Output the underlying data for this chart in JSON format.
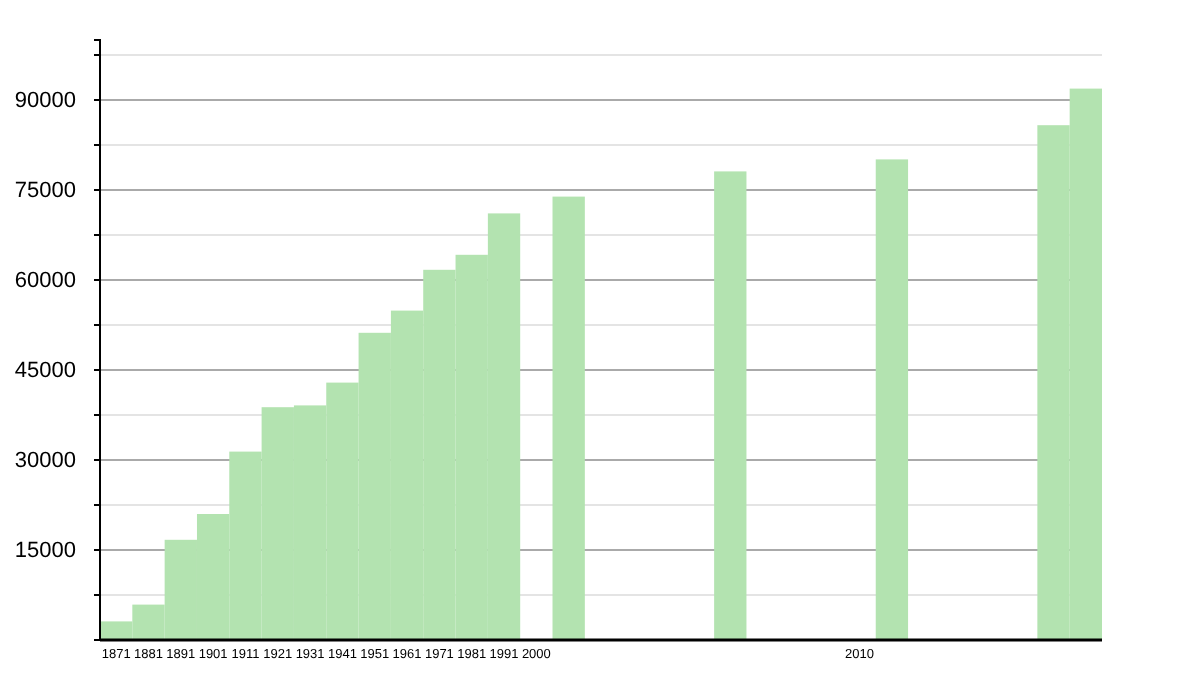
{
  "chart_data": {
    "type": "bar",
    "categories": [
      "1871",
      "1881",
      "1891",
      "1901",
      "1911",
      "1921",
      "1931",
      "1941",
      "1951",
      "1961",
      "1971",
      "1981",
      "1991",
      "2000",
      null,
      null,
      null,
      null,
      null,
      null,
      null,
      null,
      null,
      "2010",
      null,
      null,
      null,
      null,
      null,
      null,
      null
    ],
    "series": [
      {
        "color": "#b3e3b0",
        "values": [
          3100,
          5900,
          16700,
          21000,
          31400,
          38800,
          39100,
          42900,
          51200,
          54900,
          61700,
          64200,
          71100,
          null,
          73900,
          null,
          null,
          null,
          null,
          78100,
          null,
          null,
          null,
          null,
          80100,
          null,
          null,
          null,
          null,
          85800,
          91900
        ]
      }
    ],
    "ylim": [
      0,
      100000
    ],
    "yticks": [
      {
        "value": 0,
        "label": null
      },
      {
        "value": 7500,
        "label": null
      },
      15000,
      {
        "value": 22500,
        "label": null
      },
      30000,
      {
        "value": 37500,
        "label": null
      },
      45000,
      {
        "value": 52500,
        "label": null
      },
      60000,
      {
        "value": 67500,
        "label": null
      },
      75000,
      {
        "value": 82500,
        "label": null
      },
      90000,
      {
        "value": 97500,
        "label": null
      }
    ],
    "grid": true
  }
}
